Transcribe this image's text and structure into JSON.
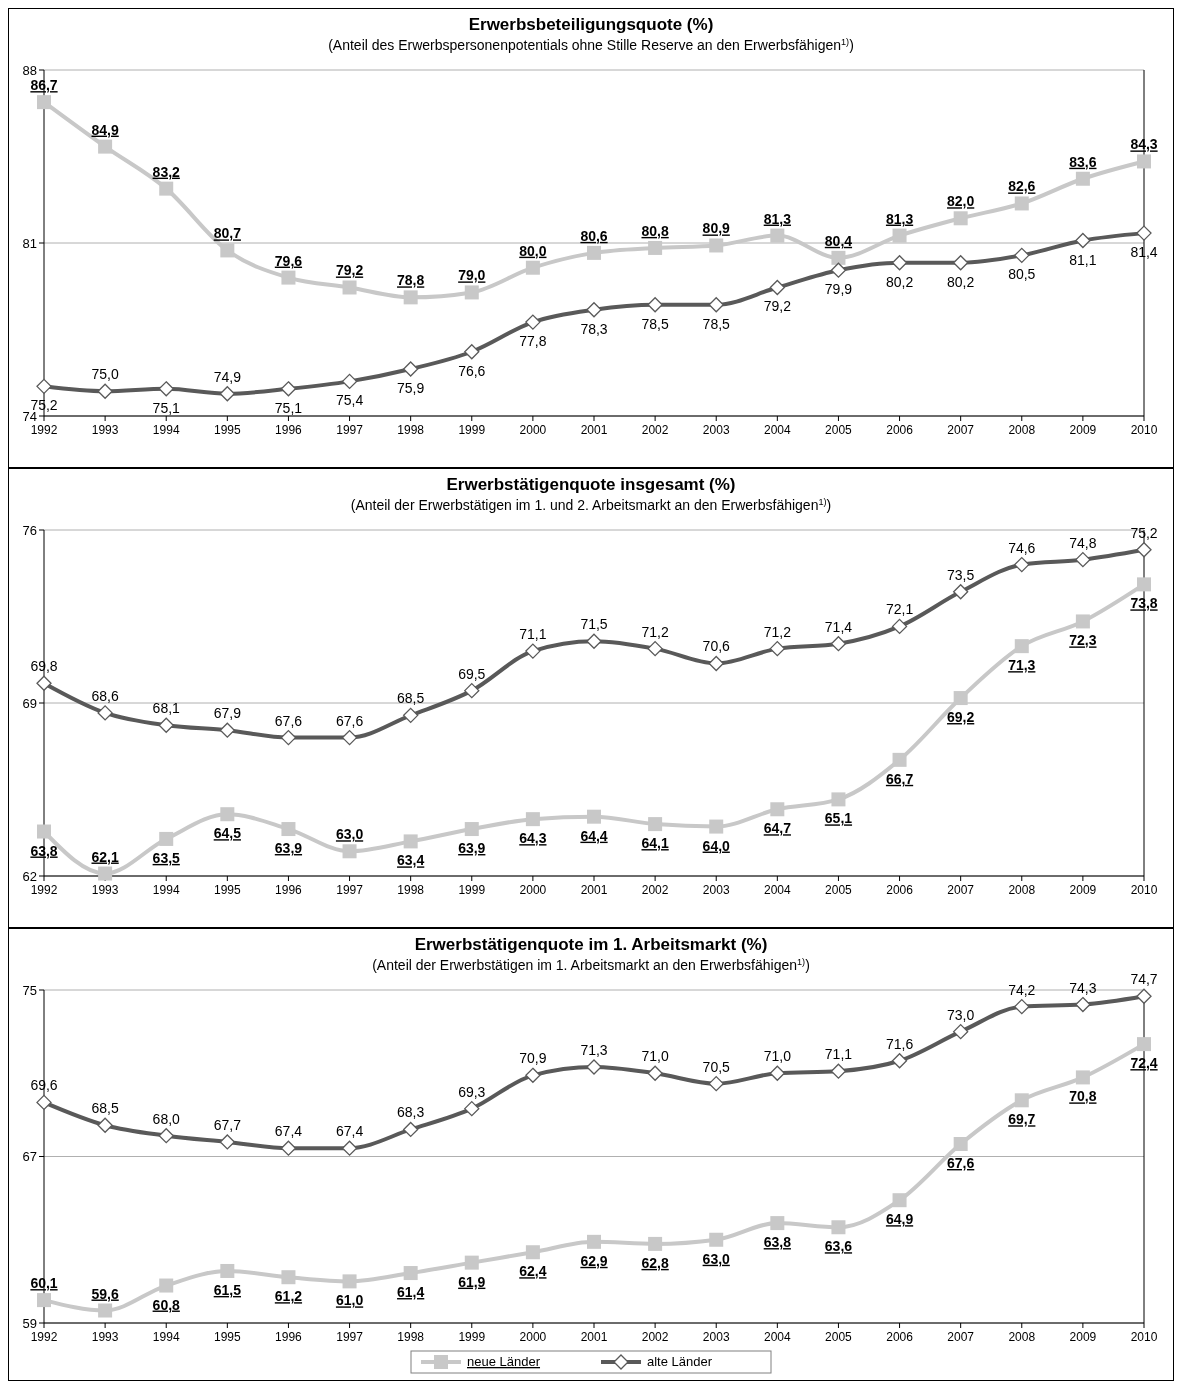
{
  "chart_data": [
    {
      "type": "line",
      "title": "Erwerbsbeteiligungsquote (%)",
      "subtitle": "(Anteil des Erwerbspersonenpotentials ohne Stille Reserve an den Erwerbsfähigen$^{1)}$)",
      "categories": [
        "1992",
        "1993",
        "1994",
        "1995",
        "1996",
        "1997",
        "1998",
        "1999",
        "2000",
        "2001",
        "2002",
        "2003",
        "2004",
        "2005",
        "2006",
        "2007",
        "2008",
        "2009",
        "2010"
      ],
      "ylim": [
        74,
        88
      ],
      "yticks": [
        74,
        81,
        88
      ],
      "grid": "y",
      "legend": false,
      "series": [
        {
          "color": "#c8c8c8",
          "marker": "square",
          "values": [
            86.7,
            84.9,
            83.2,
            80.7,
            79.6,
            79.2,
            78.8,
            79.0,
            80.0,
            80.6,
            80.8,
            80.9,
            81.3,
            80.4,
            81.3,
            82.0,
            82.6,
            83.6,
            84.3
          ],
          "value_labels": [
            "86,7",
            "84,9",
            "83,2",
            "80,7",
            "79,6",
            "79,2",
            "78,8",
            "79,0",
            "80,0",
            "80,6",
            "80,8",
            "80,9",
            "81,3",
            "80,4",
            "81,3",
            "82,0",
            "82,6",
            "83,6",
            "84,3"
          ]
        },
        {
          "color": "#595959",
          "marker": "diamond",
          "values": [
            75.2,
            75.0,
            75.1,
            74.9,
            75.1,
            75.4,
            75.9,
            76.6,
            77.8,
            78.3,
            78.5,
            78.5,
            79.2,
            79.9,
            80.2,
            80.2,
            80.5,
            81.1,
            81.4
          ],
          "value_labels": [
            "75,2",
            "75,0",
            "75,1",
            "74,9",
            "75,1",
            "75,4",
            "75,9",
            "76,6",
            "77,8",
            "78,3",
            "78,5",
            "78,5",
            "79,2",
            "79,9",
            "80,2",
            "80,2",
            "80,5",
            "81,1",
            "81,4"
          ]
        }
      ]
    },
    {
      "type": "line",
      "title": "Erwerbstätigenquote insgesamt (%)",
      "subtitle": "(Anteil der Erwerbstätigen im 1. und 2. Arbeitsmarkt an den Erwerbsfähigen$^{1)}$)",
      "categories": [
        "1992",
        "1993",
        "1994",
        "1995",
        "1996",
        "1997",
        "1998",
        "1999",
        "2000",
        "2001",
        "2002",
        "2003",
        "2004",
        "2005",
        "2006",
        "2007",
        "2008",
        "2009",
        "2010"
      ],
      "ylim": [
        62,
        76
      ],
      "yticks": [
        62,
        69,
        76
      ],
      "grid": "y",
      "legend": false,
      "series": [
        {
          "color": "#c8c8c8",
          "marker": "square",
          "values": [
            63.8,
            62.1,
            63.5,
            64.5,
            63.9,
            63.0,
            63.4,
            63.9,
            64.3,
            64.4,
            64.1,
            64.0,
            64.7,
            65.1,
            66.7,
            69.2,
            71.3,
            72.3,
            73.8
          ],
          "value_labels": [
            "63,8",
            "62,1",
            "63,5",
            "64,5",
            "63,9",
            "63,0",
            "63,4",
            "63,9",
            "64,3",
            "64,4",
            "64,1",
            "64,0",
            "64,7",
            "65,1",
            "66,7",
            "69,2",
            "71,3",
            "72,3",
            "73,8"
          ]
        },
        {
          "color": "#595959",
          "marker": "diamond",
          "values": [
            69.8,
            68.6,
            68.1,
            67.9,
            67.6,
            67.6,
            68.5,
            69.5,
            71.1,
            71.5,
            71.2,
            70.6,
            71.2,
            71.4,
            72.1,
            73.5,
            74.6,
            74.8,
            75.2
          ],
          "value_labels": [
            "69,8",
            "68,6",
            "68,1",
            "67,9",
            "67,6",
            "67,6",
            "68,5",
            "69,5",
            "71,1",
            "71,5",
            "71,2",
            "70,6",
            "71,2",
            "71,4",
            "72,1",
            "73,5",
            "74,6",
            "74,8",
            "75,2"
          ]
        }
      ]
    },
    {
      "type": "line",
      "title": "Erwerbstätigenquote im 1. Arbeitsmarkt (%)",
      "subtitle": "(Anteil der Erwerbstätigen im 1. Arbeitsmarkt an den Erwerbsfähigen$^{1)}$)",
      "categories": [
        "1992",
        "1993",
        "1994",
        "1995",
        "1996",
        "1997",
        "1998",
        "1999",
        "2000",
        "2001",
        "2002",
        "2003",
        "2004",
        "2005",
        "2006",
        "2007",
        "2008",
        "2009",
        "2010"
      ],
      "ylim": [
        59,
        75
      ],
      "yticks": [
        59,
        67,
        75
      ],
      "grid": "y",
      "legend": "bottom",
      "series": [
        {
          "name": "neue Länder",
          "color": "#c8c8c8",
          "marker": "square",
          "values": [
            60.1,
            59.6,
            60.8,
            61.5,
            61.2,
            61.0,
            61.4,
            61.9,
            62.4,
            62.9,
            62.8,
            63.0,
            63.8,
            63.6,
            64.9,
            67.6,
            69.7,
            70.8,
            72.4
          ],
          "value_labels": [
            "60,1",
            "59,6",
            "60,8",
            "61,5",
            "61,2",
            "61,0",
            "61,4",
            "61,9",
            "62,4",
            "62,9",
            "62,8",
            "63,0",
            "63,8",
            "63,6",
            "64,9",
            "67,6",
            "69,7",
            "70,8",
            "72,4"
          ]
        },
        {
          "name": "alte Länder",
          "color": "#595959",
          "marker": "diamond",
          "values": [
            69.6,
            68.5,
            68.0,
            67.7,
            67.4,
            67.4,
            68.3,
            69.3,
            70.9,
            71.3,
            71.0,
            70.5,
            71.0,
            71.1,
            71.6,
            73.0,
            74.2,
            74.3,
            74.7
          ],
          "value_labels": [
            "69,6",
            "68,5",
            "68,0",
            "67,7",
            "67,4",
            "67,4",
            "68,3",
            "69,3",
            "70,9",
            "71,3",
            "71,0",
            "70,5",
            "71,0",
            "71,1",
            "71,6",
            "73,0",
            "74,2",
            "74,3",
            "74,7"
          ]
        }
      ]
    }
  ]
}
